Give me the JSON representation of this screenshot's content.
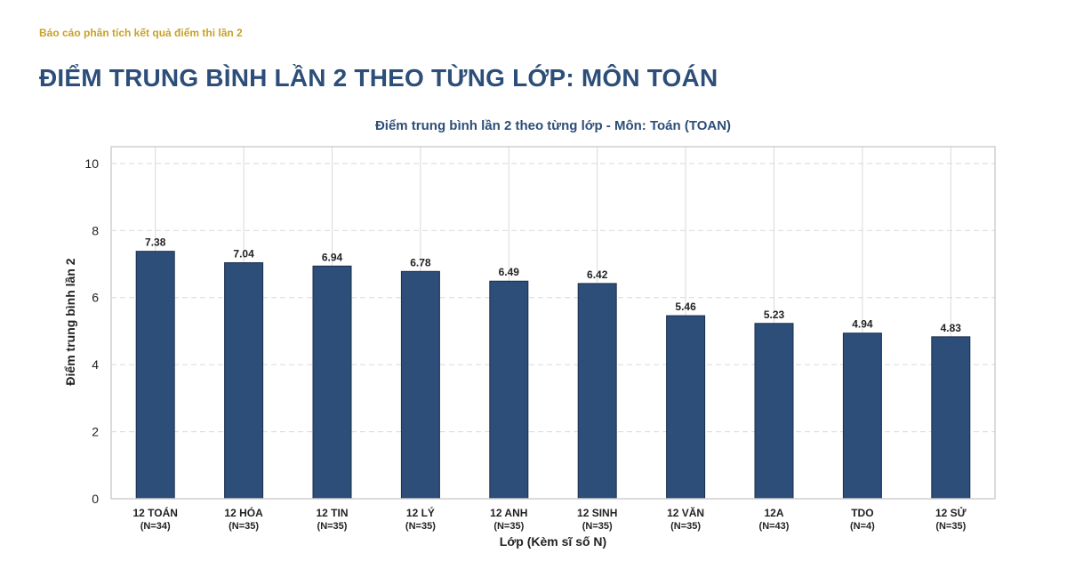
{
  "header": {
    "kicker": "Báo cáo phân tích kết quả điểm thi lần 2",
    "title": "ĐIỂM TRUNG BÌNH LẦN 2 THEO TỪNG LỚP: MÔN TOÁN"
  },
  "chart_data": {
    "type": "bar",
    "title": "Điểm trung bình lần 2 theo từng lớp - Môn: Toán (TOAN)",
    "xlabel": "Lớp (Kèm sĩ số N)",
    "ylabel": "Điểm trung bình lần 2",
    "categories": [
      "12 TOÁN",
      "12 HÓA",
      "12 TIN",
      "12 LÝ",
      "12 ANH",
      "12 SINH",
      "12 VĂN",
      "12A",
      "TDO",
      "12 SỬ"
    ],
    "category_counts": [
      "(N=34)",
      "(N=35)",
      "(N=35)",
      "(N=35)",
      "(N=35)",
      "(N=35)",
      "(N=35)",
      "(N=43)",
      "(N=4)",
      "(N=35)"
    ],
    "values": [
      7.38,
      7.04,
      6.94,
      6.78,
      6.49,
      6.42,
      5.46,
      5.23,
      4.94,
      4.83
    ],
    "data_labels": [
      "7.38",
      "7.04",
      "6.94",
      "6.78",
      "6.49",
      "6.42",
      "5.46",
      "5.23",
      "4.94",
      "4.83"
    ],
    "ylim": [
      0,
      10.5
    ],
    "yticks": [
      0,
      2,
      4,
      6,
      8,
      10
    ],
    "grid": true,
    "colors": {
      "bar": "#2C4E78",
      "bar_edge": "#1B2F4A",
      "grid": "#D5D9DE",
      "frame": "#CFCFCF"
    }
  }
}
